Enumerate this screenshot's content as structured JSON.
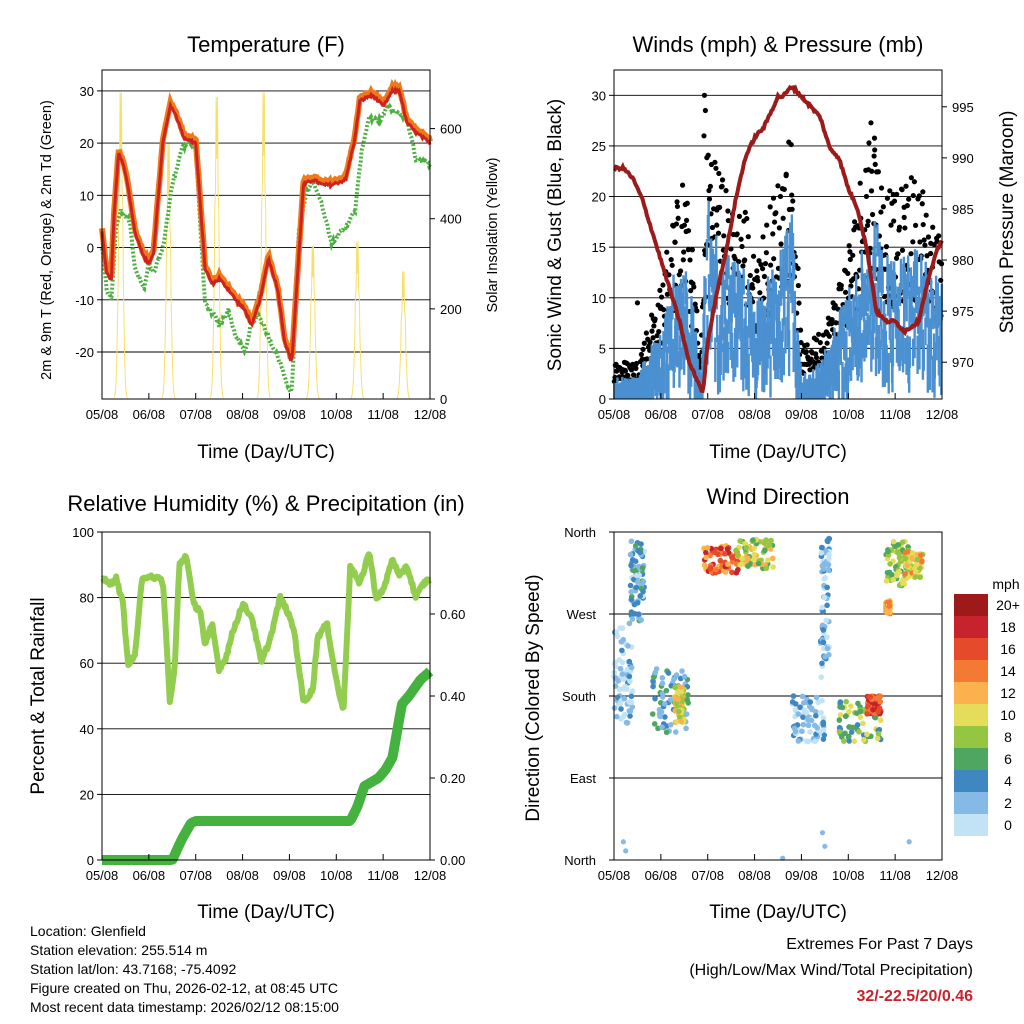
{
  "footer": {
    "location": "Location: Glenfield",
    "elevation": "Station elevation: 255.514 m",
    "latlon": "Station lat/lon: 43.7168; -75.4092",
    "created": "Figure created on Thu, 2026-02-12, at 08:45 UTC",
    "recent": "Most recent data timestamp: 2026/02/12 08:15:00",
    "extremes_title": "Extremes For Past 7 Days",
    "extremes_sub": "(High/Low/Max Wind/Total Precipitation)",
    "extremes_values": "32/-22.5/20/0.46"
  },
  "colors": {
    "temp": "#cc2222",
    "temp9": "#f07a1a",
    "dewpoint": "#4caf3f",
    "solar": "#f5e16a",
    "wind": "#4b90d0",
    "gust": "#000000",
    "pressure": "#9b1b1b",
    "rh": "#93cd4f",
    "precip": "#45b23f"
  },
  "chart_data": [
    {
      "type": "line",
      "title": "Temperature (F)",
      "xlabel": "Time (Day/UTC)",
      "ylabel": "2m & 9m T (Red, Orange) & 2m Td (Green)",
      "y2label": "Solar Insolation (Yellow)",
      "x_ticks": [
        "05/08",
        "06/08",
        "07/08",
        "08/08",
        "09/08",
        "10/08",
        "11/08",
        "12/08"
      ],
      "xlim": [
        0,
        7
      ],
      "ylim": [
        -29,
        34
      ],
      "y2lim": [
        0,
        730
      ],
      "yticks": [
        30,
        20,
        10,
        0,
        -10,
        -20
      ],
      "y2ticks": [
        0,
        200,
        400,
        600
      ],
      "grid": true,
      "series": [
        {
          "name": "2m T",
          "color": "#cc2222",
          "x": [
            0,
            0.1,
            0.2,
            0.25,
            0.35,
            0.45,
            0.55,
            0.7,
            0.9,
            1.0,
            1.1,
            1.3,
            1.45,
            1.55,
            1.75,
            2.0,
            2.2,
            2.35,
            2.5,
            2.7,
            2.85,
            3.05,
            3.2,
            3.4,
            3.55,
            3.75,
            3.9,
            4.05,
            4.3,
            4.5,
            4.7,
            4.9,
            5.2,
            5.4,
            5.5,
            5.7,
            5.8,
            6.0,
            6.2,
            6.35,
            6.5,
            6.7,
            7.0
          ],
          "y": [
            3,
            -5,
            -6,
            5,
            18,
            16,
            12,
            3,
            -2,
            -3,
            -1,
            20,
            27,
            26,
            21,
            20,
            -4,
            -7,
            -6,
            -8,
            -10,
            -12,
            -15,
            -9,
            -2,
            -8,
            -18,
            -22,
            12,
            13,
            12,
            12,
            13,
            21,
            28,
            29,
            29,
            27,
            30,
            30,
            24,
            22,
            20
          ]
        },
        {
          "name": "2m Td",
          "color": "#4caf3f",
          "x": [
            0,
            0.1,
            0.2,
            0.3,
            0.4,
            0.5,
            0.6,
            0.7,
            0.9,
            1.0,
            1.1,
            1.3,
            1.5,
            1.7,
            1.9,
            2.0,
            2.2,
            2.4,
            2.5,
            2.7,
            2.85,
            3.05,
            3.2,
            3.35,
            3.6,
            3.8,
            3.95,
            4.05,
            4.2,
            4.35,
            4.5,
            4.7,
            4.9,
            5.2,
            5.4,
            5.55,
            5.7,
            5.9,
            6.1,
            6.25,
            6.5,
            6.7,
            7.0
          ],
          "y": [
            0,
            -8,
            -10,
            4,
            7,
            6,
            5,
            -4,
            -8,
            -3,
            -5,
            0,
            12,
            19,
            20,
            19,
            -11,
            -13,
            -15,
            -12,
            -17,
            -20,
            -14,
            -13,
            -18,
            -22,
            -26,
            -28,
            3,
            10,
            13,
            8,
            1,
            4,
            7,
            19,
            25,
            24,
            27,
            26,
            25,
            17,
            16
          ]
        },
        {
          "name": "Solar Insolation",
          "axis": "y2",
          "color": "#f5e16a",
          "pulses": [
            [
              0.4,
              720
            ],
            [
              1.42,
              600
            ],
            [
              2.45,
              710
            ],
            [
              3.45,
              720
            ],
            [
              4.5,
              360
            ],
            [
              5.45,
              370
            ],
            [
              6.43,
              300
            ]
          ]
        }
      ]
    },
    {
      "type": "scatter",
      "title": "Winds (mph) & Pressure (mb)",
      "xlabel": "Time (Day/UTC)",
      "ylabel": "Sonic Wind & Gust (Blue, Black)",
      "y2label": "Station Pressure (Maroon)",
      "x_ticks": [
        "05/08",
        "06/08",
        "07/08",
        "08/08",
        "09/08",
        "10/08",
        "11/08",
        "12/08"
      ],
      "xlim": [
        0,
        7
      ],
      "ylim": [
        0,
        32.5
      ],
      "y2lim": [
        966.4,
        998.6
      ],
      "yticks": [
        0,
        5,
        10,
        15,
        20,
        25,
        30
      ],
      "y2ticks": [
        970,
        975,
        980,
        985,
        990,
        995
      ],
      "grid": true,
      "wind_profile": {
        "x": [
          0,
          0.3,
          0.5,
          0.8,
          1.0,
          1.2,
          1.5,
          1.7,
          1.85,
          2.0,
          2.2,
          2.5,
          2.8,
          3.0,
          3.3,
          3.6,
          3.8,
          4.0,
          4.3,
          4.6,
          4.9,
          5.1,
          5.3,
          5.5,
          5.7,
          6.0,
          6.3,
          6.6,
          6.8,
          7.0
        ],
        "y": [
          2,
          2,
          2,
          5,
          6,
          10,
          13,
          8,
          2,
          18,
          14,
          12,
          12,
          8,
          11,
          14,
          16,
          2,
          3,
          5,
          9,
          10,
          14,
          18,
          14,
          12,
          13,
          13,
          11,
          10
        ]
      },
      "gust_profile": {
        "x": [
          0,
          0.3,
          0.5,
          0.8,
          1.0,
          1.2,
          1.5,
          1.7,
          1.85,
          2.0,
          2.2,
          2.5,
          2.8,
          3.0,
          3.3,
          3.6,
          3.8,
          4.0,
          4.3,
          4.6,
          4.9,
          5.1,
          5.3,
          5.5,
          5.7,
          6.0,
          6.3,
          6.6,
          6.8,
          7.0
        ],
        "y": [
          3,
          3,
          3,
          7,
          9,
          14,
          18,
          11,
          3,
          22,
          20,
          15,
          16,
          11,
          15,
          19,
          22,
          4,
          5,
          7,
          11,
          14,
          19,
          24,
          18,
          16,
          18,
          17,
          14,
          13
        ]
      },
      "pressure": {
        "name": "Station Pressure",
        "x": [
          0,
          0.2,
          0.4,
          0.6,
          0.8,
          1.0,
          1.2,
          1.4,
          1.6,
          1.8,
          1.9,
          2.0,
          2.2,
          2.4,
          2.6,
          2.8,
          3.0,
          3.2,
          3.4,
          3.5,
          3.6,
          3.8,
          4.0,
          4.2,
          4.4,
          4.6,
          4.8,
          5.0,
          5.2,
          5.4,
          5.6,
          5.8,
          6.0,
          6.2,
          6.5,
          6.7,
          6.9,
          7.0
        ],
        "y": [
          989,
          989,
          988,
          986,
          983,
          980,
          977,
          974,
          970,
          968,
          967,
          972,
          977,
          981,
          986,
          990,
          992,
          993,
          995,
          996,
          996,
          997,
          996,
          995,
          994,
          991,
          990,
          987,
          985,
          981,
          975,
          974,
          974,
          973,
          974,
          978,
          981,
          982
        ]
      }
    },
    {
      "type": "line",
      "title": "Relative Humidity (%) & Precipitation (in)",
      "xlabel": "Time (Day/UTC)",
      "ylabel": "Percent & Total Rainfall",
      "x_ticks": [
        "05/08",
        "06/08",
        "07/08",
        "08/08",
        "09/08",
        "10/08",
        "11/08",
        "12/08"
      ],
      "xlim": [
        0,
        7
      ],
      "ylim": [
        0,
        100
      ],
      "y2lim": [
        0,
        0.8
      ],
      "yticks": [
        0,
        20,
        40,
        60,
        80,
        100
      ],
      "y2ticks": [
        "0.00",
        "0.20",
        "0.40",
        "0.60"
      ],
      "grid": true,
      "series": [
        {
          "name": "Relative Humidity",
          "color": "#93cd4f",
          "x": [
            0,
            0.15,
            0.3,
            0.45,
            0.55,
            0.7,
            0.85,
            1.0,
            1.3,
            1.45,
            1.55,
            1.65,
            1.8,
            1.95,
            2.1,
            2.2,
            2.35,
            2.5,
            2.65,
            2.8,
            3.0,
            3.2,
            3.4,
            3.6,
            3.8,
            3.95,
            4.1,
            4.3,
            4.5,
            4.6,
            4.8,
            5.0,
            5.15,
            5.3,
            5.5,
            5.7,
            5.85,
            6.0,
            6.2,
            6.35,
            6.5,
            6.7,
            6.85,
            7.0
          ],
          "y": [
            86,
            84,
            86,
            78,
            60,
            62,
            85,
            87,
            85,
            48,
            58,
            90,
            93,
            78,
            76,
            65,
            72,
            58,
            62,
            70,
            78,
            74,
            60,
            68,
            80,
            76,
            70,
            48,
            52,
            68,
            72,
            55,
            45,
            90,
            84,
            94,
            80,
            82,
            92,
            86,
            90,
            80,
            84,
            86
          ]
        },
        {
          "name": "Total Precipitation",
          "color": "#45b23f",
          "x": [
            0,
            1.3,
            1.5,
            1.7,
            1.9,
            2.0,
            2.3,
            3.0,
            4.0,
            5.0,
            5.3,
            5.45,
            5.6,
            5.9,
            6.05,
            6.2,
            6.4,
            6.55,
            6.8,
            7.0
          ],
          "y": [
            0,
            0,
            0,
            0.05,
            0.09,
            0.095,
            0.095,
            0.095,
            0.095,
            0.095,
            0.095,
            0.13,
            0.18,
            0.2,
            0.22,
            0.25,
            0.38,
            0.4,
            0.44,
            0.46
          ]
        }
      ]
    },
    {
      "type": "scatter",
      "title": "Wind Direction",
      "xlabel": "Time (Day/UTC)",
      "ylabel": "Direction (Colored By Speed)",
      "x_ticks": [
        "05/08",
        "06/08",
        "07/08",
        "08/08",
        "09/08",
        "10/08",
        "11/08",
        "12/08"
      ],
      "xlim": [
        0,
        7
      ],
      "ylim": [
        0,
        360
      ],
      "y_tick_labels": [
        "North",
        "East",
        "South",
        "West",
        "North"
      ],
      "grid": true,
      "colorbar": {
        "title": "mph",
        "labels": [
          "20+",
          "18",
          "16",
          "14",
          "12",
          "10",
          "8",
          "6",
          "4",
          "2",
          "0"
        ],
        "colors": [
          "#9e1a1a",
          "#c8232c",
          "#e54b2b",
          "#f47a34",
          "#fbb14d",
          "#e5dd5a",
          "#94c642",
          "#4ea660",
          "#3f87c0",
          "#85b9e6",
          "#c2e3f6"
        ]
      },
      "clusters": [
        {
          "x": [
            0,
            0.4
          ],
          "dir": [
            150,
            260
          ],
          "speed": 1
        },
        {
          "x": [
            0.35,
            0.65
          ],
          "dir": [
            260,
            350
          ],
          "speed": 3
        },
        {
          "x": [
            0.8,
            1.6
          ],
          "dir": [
            140,
            210
          ],
          "speed": 4
        },
        {
          "x": [
            1.3,
            1.5
          ],
          "dir": [
            150,
            190
          ],
          "speed": 10
        },
        {
          "x": [
            1.9,
            2.7
          ],
          "dir": [
            315,
            345
          ],
          "speed": 15
        },
        {
          "x": [
            2.6,
            3.4
          ],
          "dir": [
            320,
            352
          ],
          "speed": 9
        },
        {
          "x": [
            3.8,
            4.5
          ],
          "dir": [
            130,
            180
          ],
          "speed": 2
        },
        {
          "x": [
            4.4,
            4.6
          ],
          "dir": [
            200,
            355
          ],
          "speed": 2
        },
        {
          "x": [
            4.8,
            5.7
          ],
          "dir": [
            130,
            175
          ],
          "speed": 7
        },
        {
          "x": [
            5.4,
            5.7
          ],
          "dir": [
            160,
            180
          ],
          "speed": 16
        },
        {
          "x": [
            5.8,
            6.3
          ],
          "dir": [
            300,
            350
          ],
          "speed": 8
        },
        {
          "x": [
            6.2,
            6.6
          ],
          "dir": [
            310,
            340
          ],
          "speed": 11
        },
        {
          "x": [
            5.8,
            5.9
          ],
          "dir": [
            270,
            285
          ],
          "speed": 12
        }
      ]
    }
  ]
}
